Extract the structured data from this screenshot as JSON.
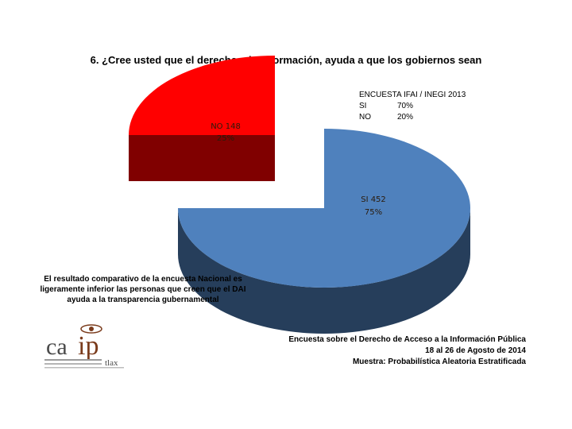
{
  "title": "6. ¿Cree usted que el derecho a la información, ayuda a que los gobiernos sean",
  "chart_data": {
    "type": "pie",
    "slices": [
      {
        "label": "SI",
        "count": 452,
        "percent": 75,
        "color": "#4f81bd",
        "text": "SI 452",
        "pct_text": "75%"
      },
      {
        "label": "NO",
        "count": 148,
        "percent": 25,
        "color": "#ff0000",
        "text": "NO 148",
        "pct_text": "25%"
      }
    ],
    "three_d": true,
    "exploded": "NO"
  },
  "ifai": {
    "title": "ENCUESTA IFAI / INEGI 2013",
    "rows": [
      {
        "k": "SI",
        "v": "70%"
      },
      {
        "k": "NO",
        "v": "20%"
      }
    ]
  },
  "comment": "El resultado comparativo de la encuesta Nacional es ligeramente inferior las personas que creen que el DAI ayuda a la transparencia gubernamental",
  "source": {
    "line1": "Encuesta sobre el Derecho de Acceso a la Información Pública",
    "line2": "18 al 26 de Agosto de 2014",
    "line3": "Muestra: Probabilística Aleatoria Estratificada"
  },
  "logo": {
    "text_ca": "ca",
    "text_ip": "ip",
    "text_tlax": "tlax"
  }
}
